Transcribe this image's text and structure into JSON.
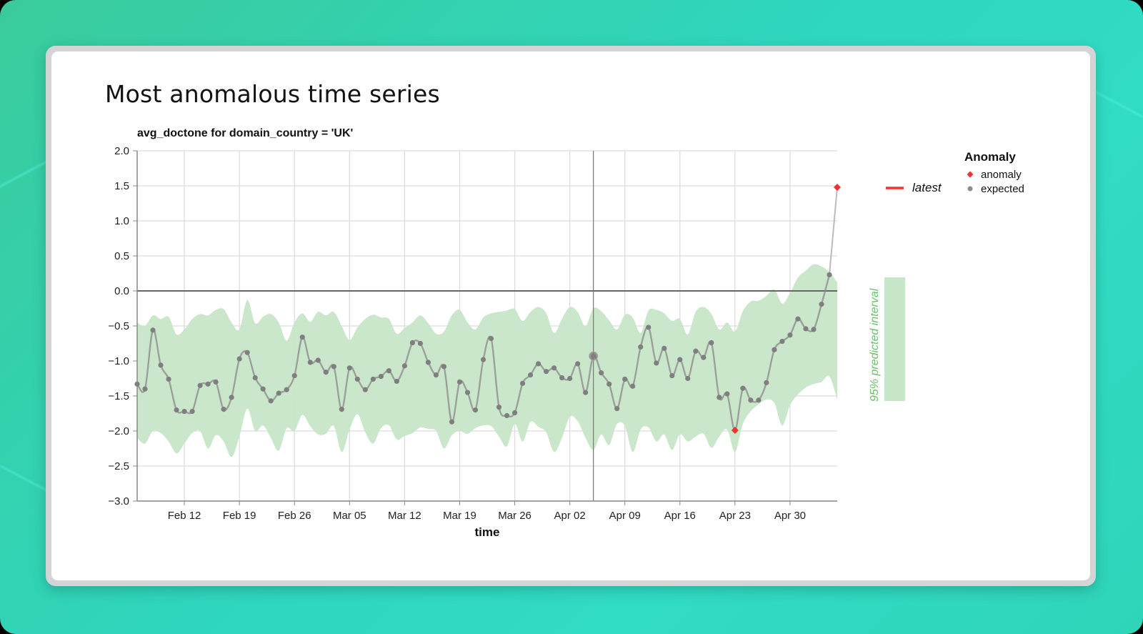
{
  "page": {
    "title": "Most anomalous time series"
  },
  "chart_data": {
    "type": "line",
    "title": "avg_doctone for domain_country = 'UK'",
    "xlabel": "time",
    "ylabel": "",
    "ylim": [
      -3.0,
      2.0
    ],
    "yticks": [
      "2.0",
      "1.5",
      "1.0",
      "0.5",
      "0.0",
      "−0.5",
      "−1.0",
      "−1.5",
      "−2.0",
      "−2.5",
      "−3.0"
    ],
    "ytick_values": [
      2.0,
      1.5,
      1.0,
      0.5,
      0.0,
      -0.5,
      -1.0,
      -1.5,
      -2.0,
      -2.5,
      -3.0
    ],
    "xticks": [
      "Feb 12",
      "Feb 19",
      "Feb 26",
      "Mar 05",
      "Mar 12",
      "Mar 19",
      "Mar 26",
      "Apr 02",
      "Apr 09",
      "Apr 16",
      "Apr 23",
      "Apr 30"
    ],
    "xtick_day_index": [
      6,
      13,
      20,
      27,
      34,
      41,
      48,
      55,
      62,
      69,
      76,
      83
    ],
    "x_start": "Feb 06",
    "x_end": "May 06",
    "grid": true,
    "reference_line_y": 0.0,
    "highlight_vertical_day_index": 58,
    "series": [
      {
        "name": "avg_doctone",
        "values": [
          -1.33,
          -1.4,
          -0.56,
          -1.06,
          -1.26,
          -1.7,
          -1.72,
          -1.72,
          -1.35,
          -1.33,
          -1.3,
          -1.69,
          -1.52,
          -0.97,
          -0.88,
          -1.24,
          -1.4,
          -1.57,
          -1.46,
          -1.41,
          -1.21,
          -0.66,
          -1.02,
          -0.99,
          -1.16,
          -1.08,
          -1.69,
          -1.1,
          -1.26,
          -1.41,
          -1.26,
          -1.22,
          -1.14,
          -1.29,
          -1.07,
          -0.74,
          -0.75,
          -1.02,
          -1.2,
          -1.08,
          -1.87,
          -1.3,
          -1.45,
          -1.7,
          -0.98,
          -0.68,
          -1.66,
          -1.78,
          -1.74,
          -1.32,
          -1.2,
          -1.04,
          -1.15,
          -1.1,
          -1.24,
          -1.25,
          -1.04,
          -1.45,
          -0.93,
          -1.17,
          -1.33,
          -1.68,
          -1.26,
          -1.36,
          -0.8,
          -0.52,
          -1.03,
          -0.82,
          -1.21,
          -0.98,
          -1.25,
          -0.86,
          -0.95,
          -0.74,
          -1.52,
          -1.47,
          -1.99,
          -1.39,
          -1.56,
          -1.56,
          -1.31,
          -0.84,
          -0.72,
          -0.63,
          -0.4,
          -0.54,
          -0.55,
          -0.19,
          0.23,
          1.48
        ]
      }
    ],
    "interval_upper": [
      -0.45,
      -0.5,
      -0.35,
      -0.4,
      -0.37,
      -0.62,
      -0.55,
      -0.4,
      -0.33,
      -0.35,
      -0.27,
      -0.26,
      -0.45,
      -0.55,
      -0.13,
      -0.46,
      -0.37,
      -0.33,
      -0.45,
      -0.71,
      -0.45,
      -0.32,
      -0.44,
      -0.3,
      -0.35,
      -0.3,
      -0.5,
      -0.7,
      -0.52,
      -0.4,
      -0.34,
      -0.38,
      -0.4,
      -0.61,
      -0.53,
      -0.45,
      -0.35,
      -0.46,
      -0.61,
      -0.58,
      -0.35,
      -0.27,
      -0.45,
      -0.55,
      -0.38,
      -0.32,
      -0.3,
      -0.28,
      -0.26,
      -0.43,
      -0.3,
      -0.23,
      -0.32,
      -0.6,
      -0.4,
      -0.23,
      -0.3,
      -0.5,
      -0.25,
      -0.29,
      -0.42,
      -0.55,
      -0.34,
      -0.38,
      -0.6,
      -0.28,
      -0.27,
      -0.32,
      -0.43,
      -0.4,
      -0.62,
      -0.3,
      -0.23,
      -0.33,
      -0.55,
      -0.45,
      -0.58,
      -0.29,
      -0.15,
      -0.14,
      -0.07,
      0.02,
      -0.18,
      -0.03,
      0.19,
      0.29,
      0.38,
      0.35,
      0.27,
      0.12
    ],
    "interval_lower": [
      -2.1,
      -2.18,
      -2.0,
      -2.03,
      -2.15,
      -2.32,
      -2.18,
      -2.03,
      -2.0,
      -2.25,
      -2.06,
      -2.15,
      -2.37,
      -2.08,
      -1.68,
      -2.0,
      -1.92,
      -2.1,
      -2.28,
      -1.96,
      -2.0,
      -1.77,
      -1.93,
      -2.05,
      -2.04,
      -1.93,
      -2.3,
      -1.98,
      -1.76,
      -2.02,
      -2.18,
      -1.96,
      -1.92,
      -2.12,
      -2.07,
      -2.03,
      -1.95,
      -1.97,
      -2.0,
      -2.25,
      -2.06,
      -2.0,
      -2.04,
      -1.96,
      -1.92,
      -1.93,
      -2.08,
      -2.22,
      -1.9,
      -2.15,
      -1.87,
      -1.94,
      -2.02,
      -2.3,
      -2.1,
      -1.8,
      -1.86,
      -2.1,
      -2.27,
      -2.05,
      -2.2,
      -1.9,
      -1.93,
      -2.3,
      -1.98,
      -1.95,
      -2.15,
      -2.05,
      -2.27,
      -2.05,
      -2.15,
      -2.08,
      -2.04,
      -2.24,
      -2.08,
      -1.98,
      -2.3,
      -1.9,
      -1.72,
      -1.62,
      -1.55,
      -1.6,
      -1.92,
      -1.63,
      -1.48,
      -1.38,
      -1.33,
      -1.3,
      -1.22,
      -1.55
    ],
    "anomalies": [
      {
        "day_index": 76,
        "date": "Apr 23",
        "value": -1.99
      },
      {
        "day_index": 89,
        "date": "May 06",
        "value": 1.48
      }
    ],
    "hover_point": {
      "day_index": 58,
      "date": "Apr 05",
      "value": -0.93
    }
  },
  "legend": {
    "title": "Anomaly",
    "items": [
      {
        "label": "anomaly",
        "color": "#f03232",
        "shape": "diamond"
      },
      {
        "label": "expected",
        "color": "#8c8c8c",
        "shape": "circle"
      }
    ],
    "latest_label": "latest",
    "latest_color": "#f03232",
    "interval_label": "95% predicted interval",
    "interval_color": "#c8e6c8"
  },
  "colors": {
    "line": "#8a8a8a",
    "interval_fill": "#c8e6c8",
    "grid": "#dddddd",
    "anomaly": "#f03232",
    "zero_line": "#666666"
  }
}
